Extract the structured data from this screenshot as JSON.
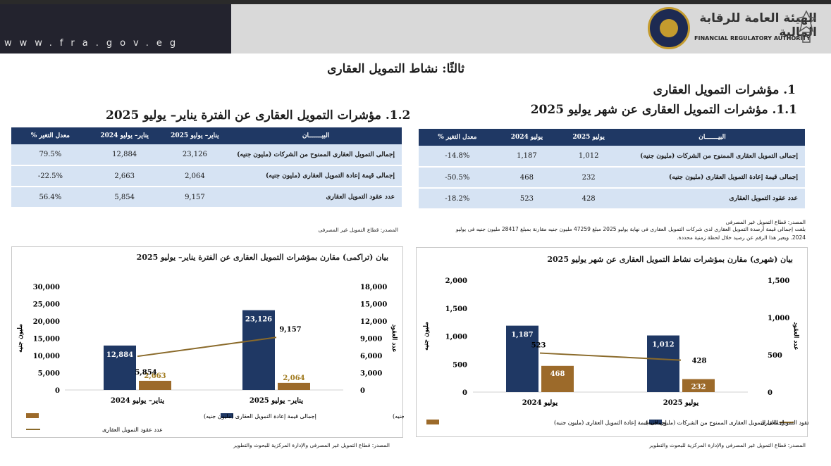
{
  "header": {
    "url": "www.fra.gov.eg",
    "logo_ar": "الهيئة العامة للرقابة المالية",
    "logo_en": "FINANCIAL REGULATORY AUTHORITY"
  },
  "page_title": "ثالثًا: نشاط التمويل العقارى",
  "section_1_title": "1. مؤشرات التمويل العقارى",
  "section_1_1_title": "1.1. مؤشرات التمويل العقارى عن شهر يوليو 2025",
  "section_1_2_title": "1.2. مؤشرات التمويل العقارى عن الفترة يناير– يوليو 2025",
  "table_monthly": {
    "headers": [
      "البيـــــــان",
      "يوليو 2025",
      "يوليو 2024",
      "معدل التغير %"
    ],
    "rows": [
      [
        "إجمالى التمويل العقارى الممنوح من الشركات (مليون جنيه)",
        "1,012",
        "1,187",
        "-14.8%"
      ],
      [
        "إجمالى قيمة إعادة التمويل العقارى (مليون جنيه)",
        "232",
        "468",
        "-50.5%"
      ],
      [
        "عدد عقود التمويل العقارى",
        "428",
        "523",
        "-18.2%"
      ]
    ]
  },
  "table_cumulative": {
    "headers": [
      "البيـــــــان",
      "يناير– يوليو 2025",
      "يناير– يوليو 2024",
      "معدل التغير %"
    ],
    "rows": [
      [
        "إجمالى التمويل العقارى الممنوح من الشركات (مليون جنيه)",
        "23,126",
        "12,884",
        "79.5%"
      ],
      [
        "إجمالى قيمة إعادة التمويل العقارى (مليون جنيه)",
        "2,064",
        "2,663",
        "-22.5%"
      ],
      [
        "عدد عقود التمويل العقارى",
        "9,157",
        "5,854",
        "56.4%"
      ]
    ]
  },
  "notes": {
    "source_monthly": "المصدر: قطاع التمويل غير المصرفى",
    "note_line1": "بلغت إجمالى قيمة أرصدة التمويل العقارى لدى شركات التمويل العقارى فى نهاية يوليو 2025 مبلغ 47259 مليون جنيه مقارنة بمبلغ 28417 مليون جنيه فى يوليو",
    "note_line2": "2024. ويعبر هذا الرقم عن رصيد خلال لحظة زمنية محددة.",
    "source_cumulative": "المصدر: قطاع التمويل غير المصرفى",
    "source_chart_right": "المصدر: قطاع التمويل غير المصرفى والإدارة المركزية للبحوث والتطوير",
    "source_chart_left": "المصدر: قطاع التمويل غير المصرفى والإدارة المركزية للبحوث والتطوير"
  },
  "colors": {
    "navy": "#1f3864",
    "brown": "#9c6a2a",
    "label_gold": "#a07a1e",
    "line": "#8a6a2a"
  },
  "chart_data": [
    {
      "type": "bar",
      "title": "بيان (شهرى) مقارن بمؤشرات نشاط التمويل العقارى عن شهر يوليو 2025",
      "categories": [
        "يوليو 2024",
        "يوليو 2025"
      ],
      "ylabel": "مليون جنيه",
      "y2label": "عدد العقود",
      "ylim": [
        0,
        2000
      ],
      "yticks": [
        "0",
        "500",
        "1,000",
        "1,500",
        "2,000"
      ],
      "y2lim": [
        0,
        1500
      ],
      "y2ticks": [
        "0",
        "500",
        "1,000",
        "1,500"
      ],
      "series": [
        {
          "name": "إجمالى التمويل العقارى الممنوح من الشركات (مليون جنيه)",
          "kind": "bar",
          "axis": "left",
          "values": [
            1187,
            1012
          ],
          "labels": [
            "1,187",
            "1,012"
          ]
        },
        {
          "name": "إجمالى قيمة إعادة التمويل العقارى (مليون جنيه)",
          "kind": "bar",
          "axis": "left",
          "values": [
            468,
            232
          ],
          "labels": [
            "468",
            "232"
          ]
        },
        {
          "name": "عدد عقود التمويل العقارى",
          "kind": "line",
          "axis": "right",
          "values": [
            523,
            428
          ],
          "labels": [
            "523",
            "428"
          ]
        }
      ],
      "legend": "bottom"
    },
    {
      "type": "bar",
      "title": "بيان (تراكمى) مقارن بمؤشرات التمويل العقارى عن الفترة يناير– يوليو 2025",
      "categories": [
        "يناير– يوليو 2024",
        "يناير– يوليو 2025"
      ],
      "ylabel": "مليون جنيه",
      "y2label": "عدد العقود",
      "ylim": [
        0,
        30000
      ],
      "yticks": [
        "0",
        "5,000",
        "10,000",
        "15,000",
        "20,000",
        "25,000",
        "30,000"
      ],
      "y2lim": [
        0,
        18000
      ],
      "y2ticks": [
        "0",
        "3,000",
        "6,000",
        "9,000",
        "12,000",
        "15,000",
        "18,000"
      ],
      "series": [
        {
          "name": "إجمالى التمويل العقارى الممنوح من الشركات (مليون جنيه)",
          "kind": "bar",
          "axis": "left",
          "values": [
            12884,
            23126
          ],
          "labels": [
            "12,884",
            "23,126"
          ]
        },
        {
          "name": "إجمالى قيمة إعادة التمويل العقارى (مليون جنيه)",
          "kind": "bar",
          "axis": "left",
          "values": [
            2663,
            2064
          ],
          "labels": [
            "2,663",
            "2,064"
          ]
        },
        {
          "name": "عدد عقود التمويل العقارى",
          "kind": "line",
          "axis": "right",
          "values": [
            5854,
            9157
          ],
          "labels": [
            "5,854",
            "9,157"
          ]
        }
      ],
      "legend": "bottom"
    }
  ]
}
